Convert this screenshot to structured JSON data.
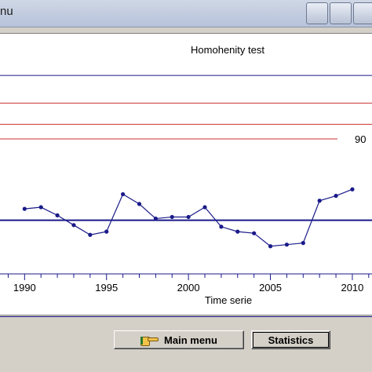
{
  "window": {
    "title": "nu"
  },
  "chart_data": {
    "type": "line",
    "title": "Homohenity test",
    "xlabel": "Time serie",
    "ylabel": "",
    "xlim": [
      1988.5,
      2011.2
    ],
    "ylim": [
      -3.3,
      10.5
    ],
    "x_ticks": [
      1990,
      1995,
      2000,
      2005,
      2010
    ],
    "x_tick_labels": [
      "1990",
      "1995",
      "2000",
      "2005",
      "2010"
    ],
    "series": [
      {
        "x": [
          1990,
          1991,
          1992,
          1993,
          1994,
          1995,
          1996,
          1997,
          1998,
          1999,
          2000,
          2001,
          2002,
          2003,
          2004,
          2005,
          2006,
          2007,
          2008,
          2009,
          2010
        ],
        "y": [
          0.7,
          0.8,
          0.3,
          -0.3,
          -0.9,
          -0.7,
          1.6,
          1.0,
          0.1,
          0.2,
          0.2,
          0.8,
          -0.4,
          -0.7,
          -0.8,
          -1.6,
          -1.5,
          -1.4,
          1.2,
          1.5,
          1.9
        ]
      }
    ],
    "reference_lines": [
      {
        "y": 0,
        "color": "#1a1a8a",
        "label": ""
      },
      {
        "y": 7.2,
        "color": "#cc3333",
        "label": ""
      },
      {
        "y": 5.9,
        "color": "#cc3333",
        "label": ""
      },
      {
        "y": 5.0,
        "color": "#cc3333",
        "label": "90"
      }
    ],
    "top_line": {
      "y": 8.9,
      "color": "#1a1a8a"
    },
    "colors": {
      "series": "#1a1a8a",
      "baseline": "#1a1a8a",
      "critical": "#cc3333"
    }
  },
  "buttons": {
    "main_menu": "Main menu",
    "statistics": "Statistics"
  }
}
